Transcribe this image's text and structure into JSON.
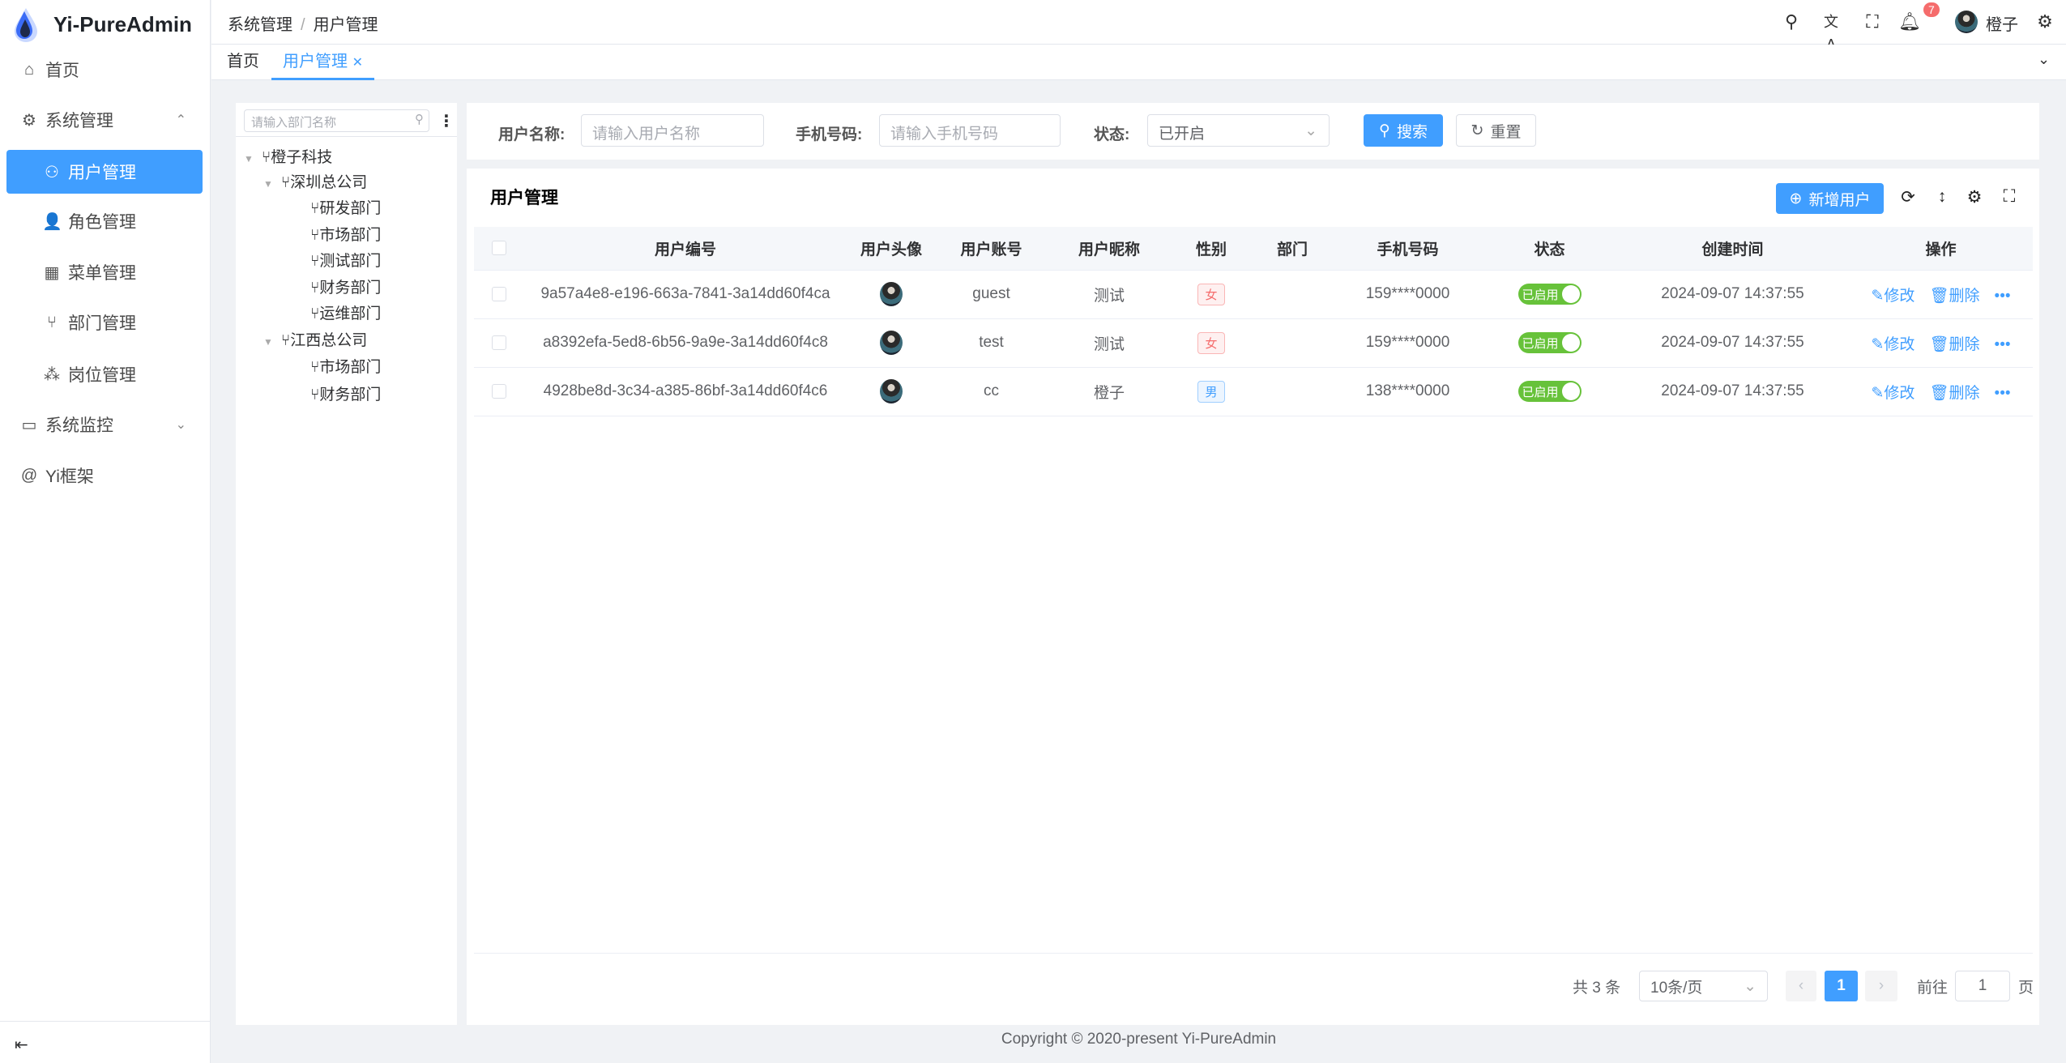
{
  "app": {
    "name": "Yi-PureAdmin",
    "footer": "Copyright © 2020-present Yi-PureAdmin"
  },
  "sidebar": {
    "items": [
      {
        "label": "首页",
        "icon": "home-icon"
      },
      {
        "label": "系统管理",
        "icon": "gear-icon",
        "expanded": true
      },
      {
        "label": "用户管理",
        "icon": "user-icon",
        "active": true
      },
      {
        "label": "角色管理",
        "icon": "role-icon"
      },
      {
        "label": "菜单管理",
        "icon": "menu-grid-icon"
      },
      {
        "label": "部门管理",
        "icon": "branch-icon"
      },
      {
        "label": "岗位管理",
        "icon": "org-icon"
      },
      {
        "label": "系统监控",
        "icon": "monitor-icon"
      },
      {
        "label": "Yi框架",
        "icon": "at-icon"
      }
    ]
  },
  "header": {
    "breadcrumb": [
      "系统管理",
      "用户管理"
    ],
    "notification_count": "7",
    "username": "橙子"
  },
  "tabs": [
    {
      "label": "首页"
    },
    {
      "label": "用户管理",
      "active": true
    }
  ],
  "tree": {
    "placeholder": "请输入部门名称",
    "nodes": [
      {
        "label": "橙子科技",
        "level": 0
      },
      {
        "label": "深圳总公司",
        "level": 1
      },
      {
        "label": "研发部门",
        "level": 2
      },
      {
        "label": "市场部门",
        "level": 2
      },
      {
        "label": "测试部门",
        "level": 2
      },
      {
        "label": "财务部门",
        "level": 2
      },
      {
        "label": "运维部门",
        "level": 2
      },
      {
        "label": "江西总公司",
        "level": 1
      },
      {
        "label": "市场部门",
        "level": 2
      },
      {
        "label": "财务部门",
        "level": 2
      }
    ]
  },
  "search": {
    "username_label": "用户名称:",
    "username_placeholder": "请输入用户名称",
    "phone_label": "手机号码:",
    "phone_placeholder": "请输入手机号码",
    "status_label": "状态:",
    "status_value": "已开启",
    "search_btn": "搜索",
    "reset_btn": "重置"
  },
  "table": {
    "title": "用户管理",
    "add_btn": "新增用户",
    "columns": [
      "用户编号",
      "用户头像",
      "用户账号",
      "用户昵称",
      "性别",
      "部门",
      "手机号码",
      "状态",
      "创建时间",
      "操作"
    ],
    "rows": [
      {
        "id": "9a57a4e8-e196-663a-7841-3a14dd60f4ca",
        "account": "guest",
        "nickname": "测试",
        "gender": "女",
        "dept": "",
        "phone": "159****0000",
        "status": "已启用",
        "created": "2024-09-07 14:37:55"
      },
      {
        "id": "a8392efa-5ed8-6b56-9a9e-3a14dd60f4c8",
        "account": "test",
        "nickname": "测试",
        "gender": "女",
        "dept": "",
        "phone": "159****0000",
        "status": "已启用",
        "created": "2024-09-07 14:37:55"
      },
      {
        "id": "4928be8d-3c34-a385-86bf-3a14dd60f4c6",
        "account": "cc",
        "nickname": "橙子",
        "gender": "男",
        "dept": "",
        "phone": "138****0000",
        "status": "已启用",
        "created": "2024-09-07 14:37:55"
      }
    ],
    "edit_label": "修改",
    "delete_label": "删除"
  },
  "pagination": {
    "total": "共 3 条",
    "page_size": "10条/页",
    "current": "1",
    "goto_label": "前往",
    "goto_value": "1",
    "page_suffix": "页"
  },
  "colors": {
    "primary": "#409eff",
    "success": "#67c23a",
    "danger": "#f56c6c"
  }
}
